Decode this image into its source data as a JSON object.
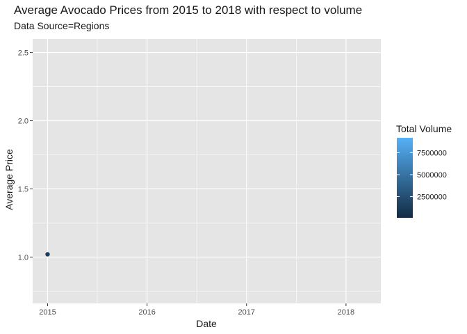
{
  "chart_data": {
    "type": "scatter",
    "title": "Average Avocado Prices from 2015 to 2018 with respect to volume",
    "subtitle": "Data Source=Regions",
    "xlabel": "Date",
    "ylabel": "Average Price",
    "x_ticks": [
      "2015",
      "2016",
      "2017",
      "2018"
    ],
    "y_ticks": [
      "1.0",
      "1.5",
      "2.0",
      "2.5"
    ],
    "xlim": [
      2014.85,
      2018.35
    ],
    "ylim": [
      0.66,
      2.6
    ],
    "grid": true,
    "points": [
      {
        "x": 2015.0,
        "y": 1.02,
        "total_volume": 1400000
      }
    ],
    "legend": {
      "title": "Total Volume",
      "labels": [
        "7500000",
        "5000000",
        "2500000"
      ],
      "values": [
        7500000,
        5000000,
        2500000
      ],
      "range": [
        80000,
        9200000
      ],
      "low_color": "#132B43",
      "high_color": "#56B1F7",
      "placement": "right"
    },
    "colors": {
      "panel_background": "#e5e5e5",
      "grid_line": "#ffffff"
    }
  }
}
